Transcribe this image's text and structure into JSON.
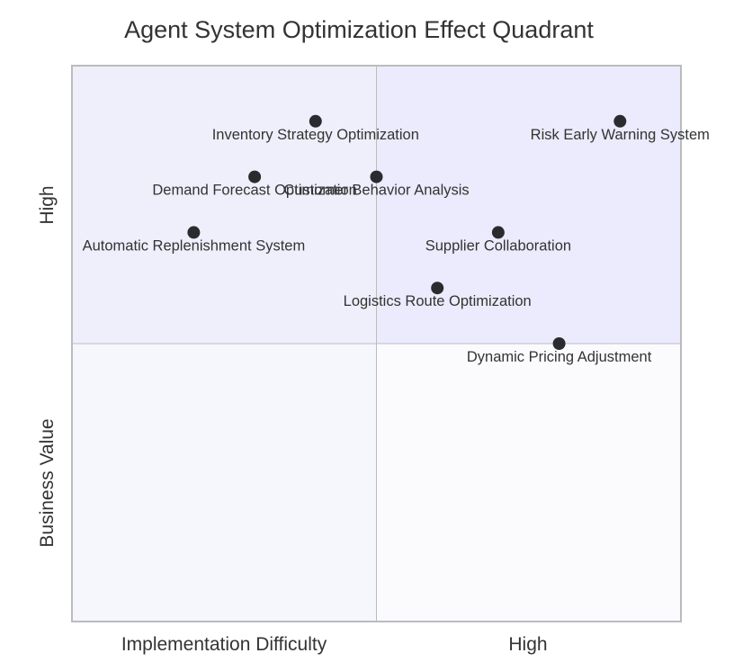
{
  "chart_data": {
    "type": "scatter",
    "title": "Agent System Optimization Effect Quadrant",
    "xlabel": "Implementation Difficulty",
    "xlabel_high": "High",
    "ylabel": "Business Value",
    "ylabel_high": "High",
    "xlim": [
      0,
      1
    ],
    "ylim": [
      0,
      1
    ],
    "grid": false,
    "quadrant_colors": {
      "top_left": "#efeffc",
      "top_right": "#ebebfd",
      "bottom_left": "#f6f6fd",
      "bottom_right": "#fbfbfe"
    },
    "point_color": "#2b2b2f",
    "border_color": "#bbbbbf",
    "points": [
      {
        "label": "Inventory Strategy Optimization",
        "x": 0.4,
        "y": 0.9
      },
      {
        "label": "Risk Early Warning System",
        "x": 0.9,
        "y": 0.9
      },
      {
        "label": "Demand Forecast Optimization",
        "x": 0.3,
        "y": 0.8
      },
      {
        "label": "Customer Behavior Analysis",
        "x": 0.5,
        "y": 0.8
      },
      {
        "label": "Automatic Replenishment System",
        "x": 0.2,
        "y": 0.7
      },
      {
        "label": "Supplier Collaboration",
        "x": 0.7,
        "y": 0.7
      },
      {
        "label": "Logistics Route Optimization",
        "x": 0.6,
        "y": 0.6
      },
      {
        "label": "Dynamic Pricing Adjustment",
        "x": 0.8,
        "y": 0.5
      }
    ]
  }
}
